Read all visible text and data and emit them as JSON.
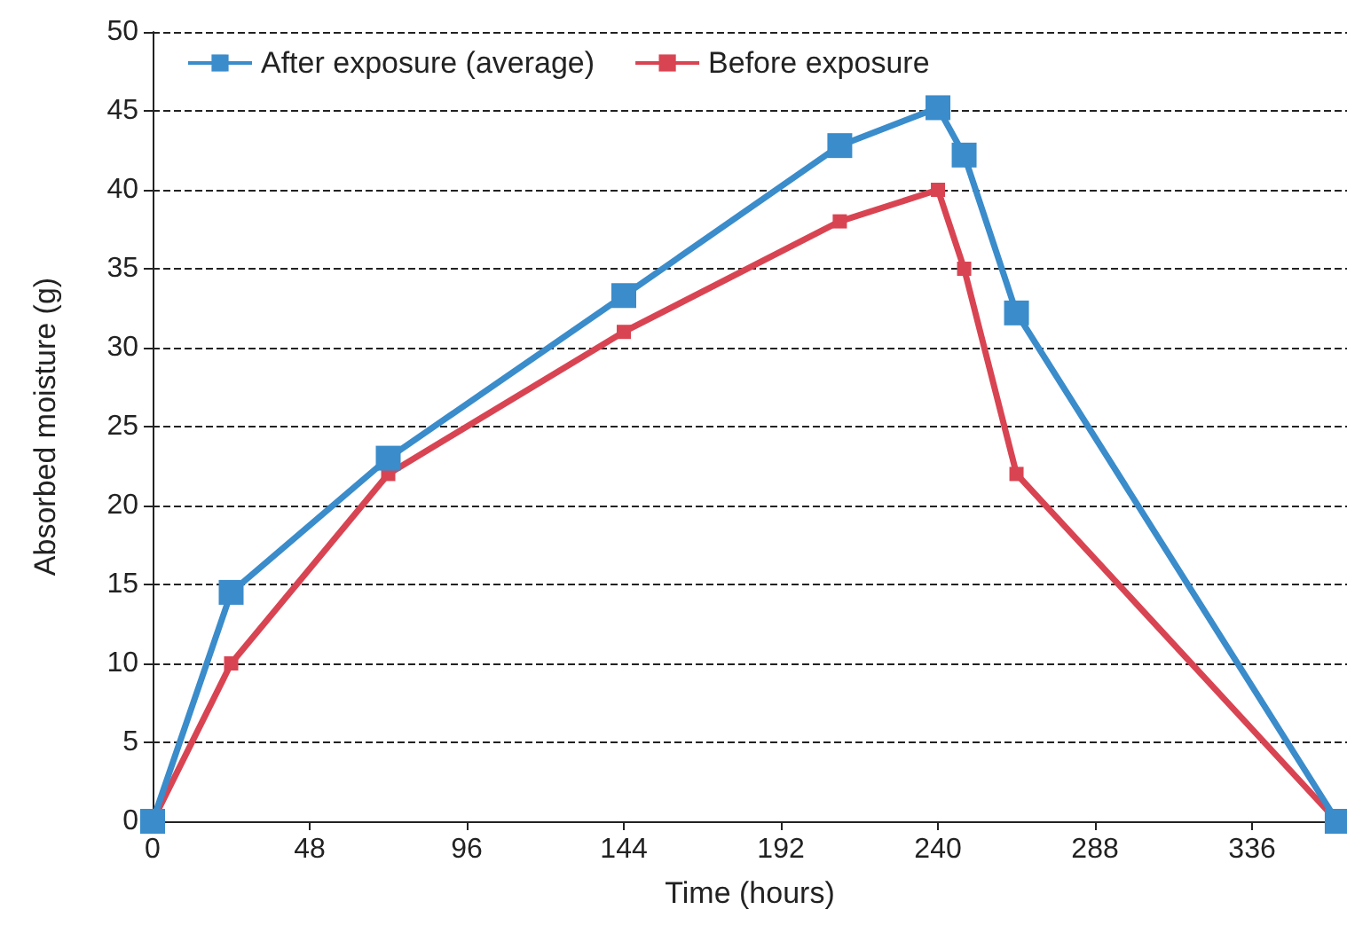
{
  "chart_data": {
    "type": "line",
    "xlabel": "Time (hours)",
    "ylabel": "Absorbed moisture (g)",
    "xlim": [
      0,
      365
    ],
    "xticks": [
      0,
      48,
      96,
      144,
      192,
      240,
      288,
      336
    ],
    "ylim": [
      0,
      50
    ],
    "yticks": [
      0,
      5,
      10,
      15,
      20,
      25,
      30,
      35,
      40,
      45,
      50
    ],
    "grid": "y",
    "legend": "top left",
    "marker": "square",
    "line_style": "solid",
    "series": [
      {
        "name": "After exposure (average)",
        "color": "#3a8ccb",
        "x": [
          0,
          24,
          72,
          144,
          210,
          240,
          248,
          264,
          362
        ],
        "values": [
          0,
          14.5,
          23,
          33.3,
          42.8,
          45.2,
          42.2,
          32.2,
          0
        ]
      },
      {
        "name": "Before exposure",
        "color": "#d94452",
        "x": [
          0,
          24,
          72,
          144,
          210,
          240,
          248,
          264,
          362
        ],
        "values": [
          0,
          10,
          22,
          31,
          38,
          40,
          35,
          22,
          0
        ]
      }
    ]
  }
}
